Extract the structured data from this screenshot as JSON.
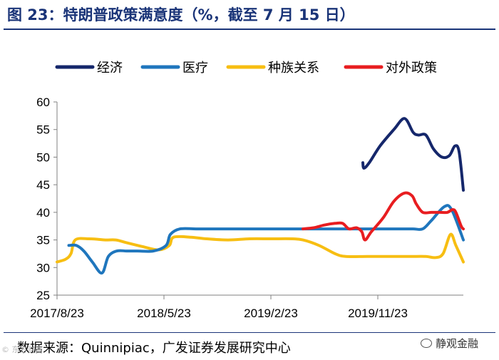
{
  "header": {
    "title": "图 23：特朗普政策满意度（%，截至 7 月 15 日）"
  },
  "footer": {
    "source": "数据来源：Quinnipiac，广发证券发展研究中心",
    "watermark": "静观金融",
    "corner_mark": "© 东方财富"
  },
  "colors": {
    "title": "#1a3478",
    "economy": "#15276b",
    "healthcare": "#1f76bd",
    "race": "#f7be12",
    "foreign": "#e81d20",
    "axis": "#808080"
  },
  "chart_data": {
    "type": "line",
    "title": "特朗普政策满意度（%，截至 7 月 15 日）",
    "xlabel": "",
    "ylabel": "",
    "ylim": [
      25,
      60
    ],
    "yticks": [
      25,
      30,
      35,
      40,
      45,
      50,
      55,
      60
    ],
    "xlim": [
      0,
      38
    ],
    "xticks": [
      {
        "x": 0,
        "label": "2017/8/23"
      },
      {
        "x": 10,
        "label": "2018/5/23"
      },
      {
        "x": 20,
        "label": "2019/2/23"
      },
      {
        "x": 30,
        "label": "2019/11/23"
      }
    ],
    "x_unit": "months since 2017/8/23",
    "legend_position": "top",
    "grid": false,
    "series": [
      {
        "name": "经济",
        "color": "#15276b",
        "points": [
          [
            28.6,
            49
          ],
          [
            28.7,
            48
          ],
          [
            29.2,
            49
          ],
          [
            30.2,
            52
          ],
          [
            31.5,
            55
          ],
          [
            32.5,
            57
          ],
          [
            33.3,
            54.5
          ],
          [
            33.8,
            54
          ],
          [
            34.5,
            54
          ],
          [
            35.2,
            51.5
          ],
          [
            36.0,
            50
          ],
          [
            36.7,
            50.3
          ],
          [
            37.2,
            52
          ],
          [
            37.6,
            51
          ],
          [
            38.0,
            44
          ]
        ]
      },
      {
        "name": "医疗",
        "color": "#1f76bd",
        "points": [
          [
            1.1,
            34
          ],
          [
            1.8,
            34
          ],
          [
            2.5,
            33
          ],
          [
            3.3,
            31
          ],
          [
            4.2,
            29
          ],
          [
            4.8,
            32
          ],
          [
            5.6,
            33
          ],
          [
            6.5,
            33
          ],
          [
            7.5,
            33
          ],
          [
            9.0,
            33
          ],
          [
            10.2,
            34
          ],
          [
            10.6,
            36
          ],
          [
            11.5,
            37
          ],
          [
            13.0,
            37
          ],
          [
            15.0,
            37
          ],
          [
            20.0,
            37
          ],
          [
            25.0,
            37
          ],
          [
            30.0,
            37
          ],
          [
            32.0,
            37
          ],
          [
            33.3,
            37
          ],
          [
            34.2,
            37
          ],
          [
            35.0,
            38.5
          ],
          [
            36.2,
            41
          ],
          [
            36.9,
            40.5
          ],
          [
            38.0,
            35
          ]
        ]
      },
      {
        "name": "种族关系",
        "color": "#f7be12",
        "points": [
          [
            0,
            31
          ],
          [
            0.8,
            31.5
          ],
          [
            1.3,
            32.5
          ],
          [
            1.7,
            35
          ],
          [
            3.0,
            35.2
          ],
          [
            4.5,
            35
          ],
          [
            5.5,
            35
          ],
          [
            6.5,
            34.5
          ],
          [
            8.0,
            33.8
          ],
          [
            9.5,
            33.2
          ],
          [
            10.5,
            34
          ],
          [
            10.9,
            35.5
          ],
          [
            12.5,
            35.5
          ],
          [
            14.0,
            35.2
          ],
          [
            16.0,
            35
          ],
          [
            18.0,
            35.2
          ],
          [
            20.0,
            35.2
          ],
          [
            22.0,
            35.2
          ],
          [
            23.0,
            35
          ],
          [
            24.5,
            34
          ],
          [
            26.0,
            32.5
          ],
          [
            27.0,
            32
          ],
          [
            29.0,
            32
          ],
          [
            31.0,
            32
          ],
          [
            33.0,
            32
          ],
          [
            34.5,
            32
          ],
          [
            35.4,
            31.8
          ],
          [
            36.1,
            32.5
          ],
          [
            36.8,
            36
          ],
          [
            37.3,
            34
          ],
          [
            38.0,
            31
          ]
        ]
      },
      {
        "name": "对外政策",
        "color": "#e81d20",
        "points": [
          [
            23.0,
            37
          ],
          [
            24.0,
            37.2
          ],
          [
            25.0,
            37.7
          ],
          [
            26.0,
            38
          ],
          [
            26.7,
            38
          ],
          [
            27.3,
            37
          ],
          [
            28.0,
            37.2
          ],
          [
            28.5,
            36.5
          ],
          [
            28.8,
            35
          ],
          [
            29.4,
            36.5
          ],
          [
            30.5,
            39
          ],
          [
            31.5,
            42
          ],
          [
            32.5,
            43.5
          ],
          [
            33.2,
            43
          ],
          [
            33.6,
            41.5
          ],
          [
            34.2,
            40
          ],
          [
            35.0,
            40
          ],
          [
            35.8,
            40
          ],
          [
            36.5,
            40
          ],
          [
            37.0,
            40.5
          ],
          [
            37.3,
            40
          ],
          [
            37.8,
            37.5
          ],
          [
            38.0,
            37
          ]
        ]
      }
    ]
  }
}
